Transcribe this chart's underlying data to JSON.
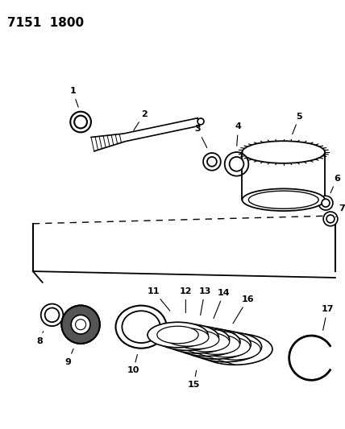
{
  "title": "7151  1800",
  "background_color": "#ffffff",
  "line_color": "#000000",
  "fig_width": 4.28,
  "fig_height": 5.33,
  "dpi": 100
}
